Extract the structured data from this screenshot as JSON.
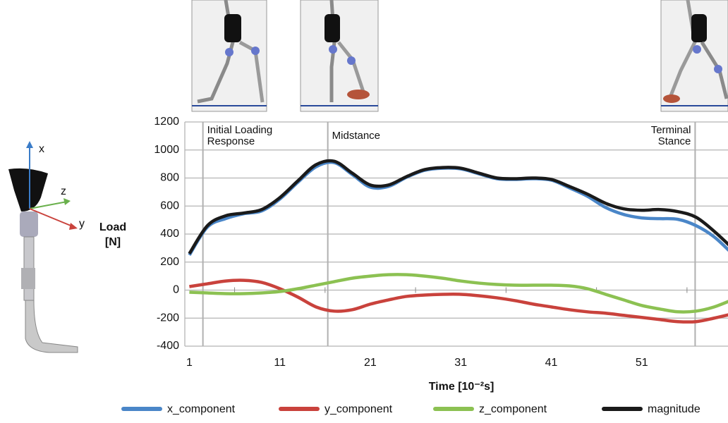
{
  "chart_data": {
    "type": "line",
    "x": [
      1,
      3,
      5,
      7,
      9,
      11,
      13,
      15,
      17,
      19,
      21,
      23,
      25,
      27,
      29,
      31,
      33,
      35,
      37,
      39,
      41,
      43,
      45,
      47,
      49,
      51,
      53,
      55,
      57,
      59,
      61
    ],
    "series": [
      {
        "name": "x_component",
        "color": "#4a86c8",
        "values": [
          250,
          450,
          510,
          545,
          565,
          650,
          770,
          880,
          910,
          825,
          735,
          740,
          805,
          855,
          870,
          865,
          830,
          795,
          790,
          795,
          785,
          730,
          670,
          590,
          540,
          515,
          510,
          505,
          460,
          380,
          260
        ]
      },
      {
        "name": "y_component",
        "color": "#c9423c",
        "values": [
          25,
          45,
          65,
          70,
          55,
          10,
          -50,
          -120,
          -150,
          -140,
          -100,
          -70,
          -45,
          -35,
          -30,
          -30,
          -40,
          -55,
          -75,
          -100,
          -120,
          -140,
          -155,
          -165,
          -180,
          -195,
          -210,
          -225,
          -225,
          -200,
          -170
        ]
      },
      {
        "name": "z_component",
        "color": "#8cc152",
        "values": [
          -15,
          -20,
          -25,
          -25,
          -20,
          -10,
          10,
          35,
          60,
          85,
          100,
          110,
          110,
          100,
          85,
          65,
          50,
          40,
          35,
          35,
          35,
          30,
          10,
          -30,
          -70,
          -110,
          -135,
          -155,
          -150,
          -120,
          -70
        ]
      },
      {
        "name": "magnitude",
        "color": "#1a1a1a",
        "values": [
          260,
          460,
          530,
          550,
          575,
          660,
          780,
          895,
          920,
          835,
          750,
          750,
          810,
          860,
          875,
          870,
          835,
          800,
          795,
          800,
          790,
          740,
          685,
          620,
          580,
          570,
          575,
          560,
          520,
          420,
          300
        ]
      }
    ],
    "xlim": [
      0.5,
      61
    ],
    "xticks": [
      1,
      11,
      21,
      31,
      41,
      51
    ],
    "ylim": [
      -400,
      1200
    ],
    "yticks": [
      -400,
      -200,
      0,
      200,
      400,
      600,
      800,
      1000,
      1200
    ],
    "grid": true,
    "xlabel": "Time [10⁻²s]",
    "ylabel": [
      "Load",
      "[N]"
    ],
    "annotations": [
      {
        "x": 2.5,
        "lines": [
          "Initial Loading",
          "Response"
        ]
      },
      {
        "x": 16.3,
        "lines": [
          "Midstance"
        ]
      },
      {
        "x": 56.9,
        "lines": [
          "Terminal",
          "Stance"
        ]
      }
    ],
    "illustration_labels": [
      "x",
      "z",
      "y"
    ],
    "legend": "bottom"
  }
}
